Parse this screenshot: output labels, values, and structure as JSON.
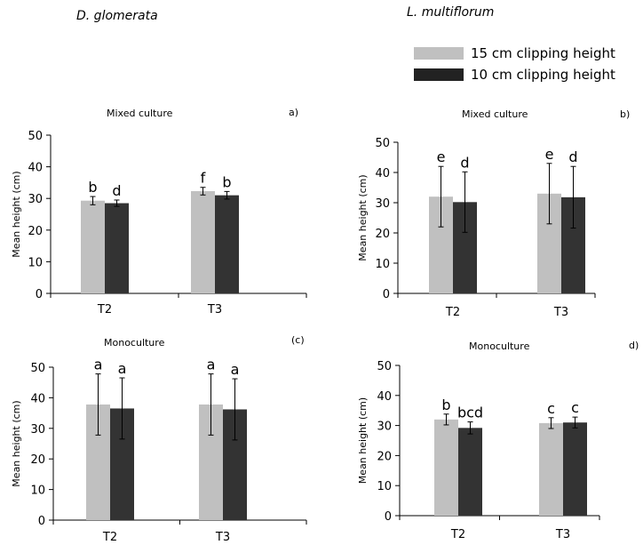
{
  "species": {
    "left": "D. glomerata",
    "right": "L. multiflorum"
  },
  "legend": [
    {
      "label": "15 cm clipping height",
      "color": "#c0c0c0"
    },
    {
      "label": "10 cm clipping height",
      "color": "#333333"
    }
  ],
  "chart_data": [
    {
      "type": "bar",
      "title": "Mixed culture",
      "panel_label": "a)",
      "ylabel": "Mean height (cm)",
      "ylim": [
        0,
        50
      ],
      "yticks": [
        0,
        10,
        20,
        30,
        40,
        50
      ],
      "categories": [
        "T2",
        "T3"
      ],
      "series": [
        {
          "name": "15 cm clipping height",
          "values": [
            29.3,
            32.3
          ],
          "errors": [
            1.3,
            1.2
          ],
          "letters": [
            "b",
            "f"
          ]
        },
        {
          "name": "10 cm clipping height",
          "values": [
            28.5,
            31.0
          ],
          "errors": [
            1.0,
            1.2
          ],
          "letters": [
            "d",
            "b"
          ]
        }
      ]
    },
    {
      "type": "bar",
      "title": "Mixed culture",
      "panel_label": "b)",
      "ylabel": "Mean height (cm)",
      "ylim": [
        0,
        50
      ],
      "yticks": [
        0,
        10,
        20,
        30,
        40,
        50
      ],
      "categories": [
        "T2",
        "T3"
      ],
      "series": [
        {
          "name": "15 cm clipping height",
          "values": [
            32.0,
            33.0
          ],
          "errors": [
            10.0,
            10.0
          ],
          "letters": [
            "e",
            "e"
          ]
        },
        {
          "name": "10 cm clipping height",
          "values": [
            30.2,
            31.8
          ],
          "errors": [
            10.0,
            10.2
          ],
          "letters": [
            "d",
            "d"
          ]
        }
      ]
    },
    {
      "type": "bar",
      "title": "Monoculture",
      "panel_label": "(c)",
      "ylabel": "Mean height (cm)",
      "ylim": [
        0,
        50
      ],
      "yticks": [
        0,
        10,
        20,
        30,
        40,
        50
      ],
      "categories": [
        "T2",
        "T3"
      ],
      "series": [
        {
          "name": "15 cm clipping height",
          "values": [
            37.8,
            37.8
          ],
          "errors": [
            10.0,
            10.0
          ],
          "letters": [
            "a",
            "a"
          ]
        },
        {
          "name": "10 cm clipping height",
          "values": [
            36.5,
            36.2
          ],
          "errors": [
            10.0,
            10.0
          ],
          "letters": [
            "a",
            "a"
          ]
        }
      ]
    },
    {
      "type": "bar",
      "title": "Monoculture",
      "panel_label": "d)",
      "ylabel": "Mean height (cm)",
      "ylim": [
        0,
        50
      ],
      "yticks": [
        0,
        10,
        20,
        30,
        40,
        50
      ],
      "categories": [
        "T2",
        "T3"
      ],
      "series": [
        {
          "name": "15 cm clipping height",
          "values": [
            32.0,
            30.8
          ],
          "errors": [
            1.8,
            1.8
          ],
          "letters": [
            "b",
            "c"
          ]
        },
        {
          "name": "10 cm clipping height",
          "values": [
            29.2,
            31.0
          ],
          "errors": [
            2.0,
            1.8
          ],
          "letters": [
            "bcd",
            "c"
          ]
        }
      ]
    }
  ]
}
